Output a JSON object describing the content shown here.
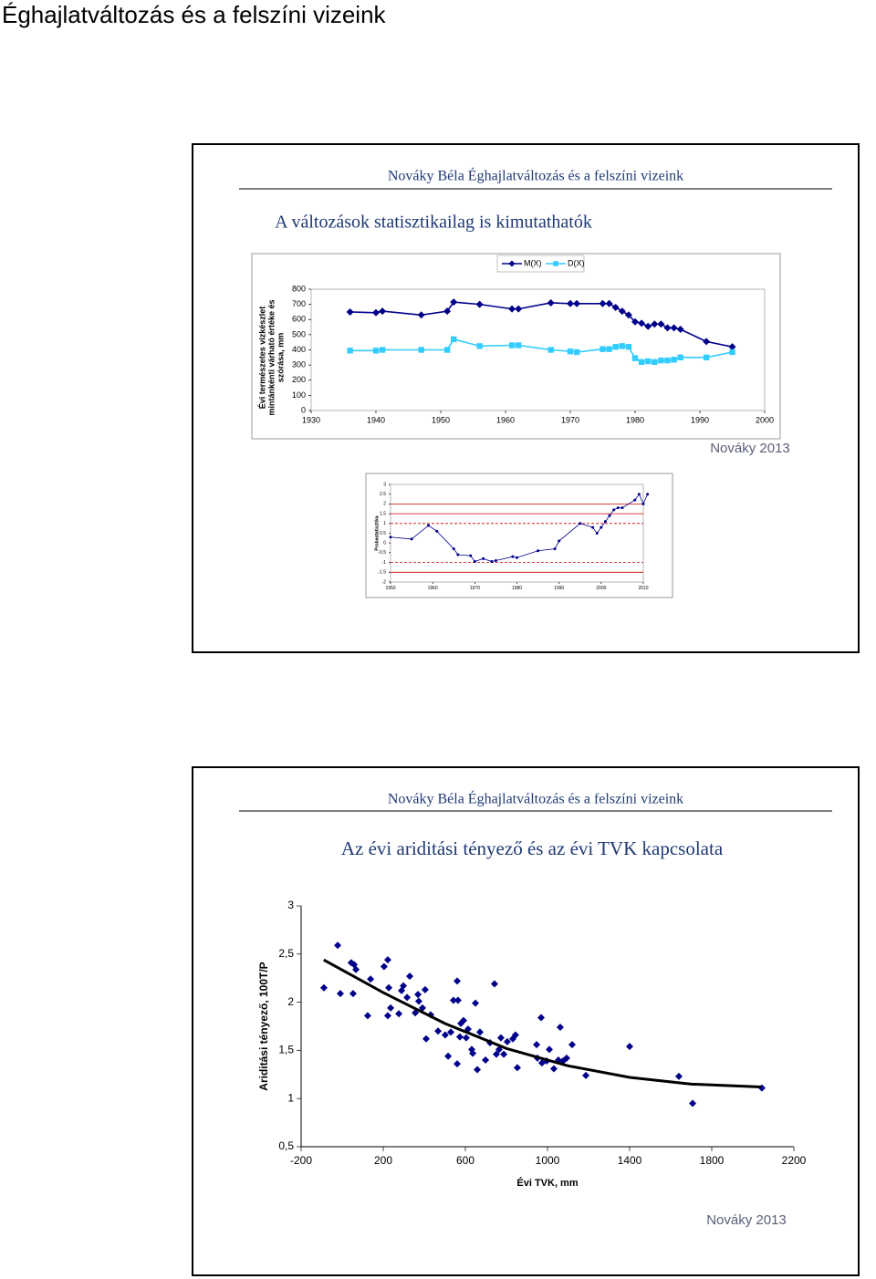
{
  "page_title": "Éghajlatváltozás és a felszíni vizeink",
  "slides": [
    {
      "header": "Nováky Béla Éghajlatváltozás és a felszíni vizeink",
      "title": "A változások statisztikailag is kimutathatók",
      "source": "Nováky 2013"
    },
    {
      "header": "Nováky Béla Éghajlatváltozás és a felszíni vizeink",
      "title": "Az évi ariditási tényező és az évi TVK kapcsolata",
      "source": "Nováky 2013"
    }
  ],
  "chart_data": [
    {
      "type": "line",
      "ylabel_lines": [
        "Évi természetes vízkészlet",
        "mintánkénti várható értéke és",
        "szórása, mm"
      ],
      "x": [
        1936,
        1940,
        1941,
        1947,
        1951,
        1952,
        1956,
        1961,
        1962,
        1967,
        1970,
        1971,
        1975,
        1976,
        1977,
        1978,
        1979,
        1980,
        1981,
        1982,
        1983,
        1984,
        1985,
        1986,
        1987,
        1991,
        1995
      ],
      "series": [
        {
          "name": "M(X)",
          "color": "#00008b",
          "marker": "diamond",
          "values": [
            650,
            645,
            655,
            630,
            655,
            715,
            700,
            670,
            670,
            710,
            705,
            705,
            705,
            705,
            680,
            655,
            630,
            585,
            575,
            555,
            570,
            570,
            545,
            545,
            535,
            455,
            420
          ]
        },
        {
          "name": "D(X)",
          "color": "#33ccff",
          "marker": "square",
          "values": [
            395,
            395,
            400,
            400,
            400,
            470,
            425,
            430,
            430,
            400,
            390,
            385,
            405,
            405,
            420,
            425,
            420,
            345,
            320,
            325,
            320,
            330,
            330,
            335,
            350,
            350,
            385
          ]
        }
      ],
      "xlim": [
        1930,
        2000
      ],
      "xticks": [
        1930,
        1940,
        1950,
        1960,
        1970,
        1980,
        1990,
        2000
      ],
      "ylim": [
        0,
        800
      ],
      "yticks": [
        0,
        100,
        200,
        300,
        400,
        500,
        600,
        700,
        800
      ],
      "legend": "top"
    },
    {
      "type": "line",
      "ylabel": "Probastatisztika",
      "x": [
        1950,
        1955,
        1959,
        1961,
        1965,
        1966,
        1969,
        1970,
        1972,
        1974,
        1975,
        1979,
        1980,
        1985,
        1989,
        1990,
        1995,
        1998,
        1999,
        2000,
        2001,
        2002,
        2003,
        2004,
        2005,
        2008,
        2009,
        2010,
        2011
      ],
      "series": [
        {
          "color": "#00008b",
          "marker": "dot",
          "values": [
            0.3,
            0.2,
            0.9,
            0.6,
            -0.3,
            -0.6,
            -0.65,
            -0.95,
            -0.8,
            -0.95,
            -0.9,
            -0.7,
            -0.75,
            -0.4,
            -0.3,
            0.1,
            1.0,
            0.8,
            0.5,
            0.8,
            1.1,
            1.4,
            1.7,
            1.8,
            1.8,
            2.2,
            2.5,
            2.0,
            2.5
          ]
        }
      ],
      "ref_lines": [
        {
          "value": 2,
          "style": "solid"
        },
        {
          "value": 1.5,
          "style": "solid"
        },
        {
          "value": 1,
          "style": "dashed"
        },
        {
          "value": -1,
          "style": "dashed"
        },
        {
          "value": -1.5,
          "style": "solid"
        }
      ],
      "ref_color": "#cc0000",
      "xlim": [
        1950,
        2010
      ],
      "xticks": [
        1950,
        1960,
        1970,
        1980,
        1990,
        2000,
        2010
      ],
      "ylim": [
        -2,
        3
      ],
      "yticks": [
        -2,
        -1.5,
        -1,
        -0.5,
        0,
        0.5,
        1,
        1.5,
        2,
        2.5,
        3
      ]
    },
    {
      "type": "scatter",
      "xlabel": "Évi TVK, mm",
      "ylabel": "Ariditási tényező, 100T/P",
      "color": "#00008b",
      "x": [
        -89,
        -22,
        -9,
        44,
        53,
        58,
        67,
        124,
        138,
        204,
        222,
        222,
        227,
        236,
        276,
        289,
        298,
        316,
        329,
        356,
        369,
        373,
        391,
        404,
        409,
        431,
        467,
        502,
        516,
        529,
        542,
        560,
        560,
        564,
        573,
        578,
        591,
        604,
        613,
        631,
        636,
        649,
        658,
        671,
        698,
        720,
        742,
        751,
        764,
        773,
        787,
        804,
        831,
        844,
        853,
        947,
        951,
        969,
        973,
        996,
        1009,
        1031,
        1053,
        1062,
        1076,
        1093,
        1120,
        1187,
        1400,
        1640,
        1707,
        2044
      ],
      "values": [
        2.15,
        2.59,
        2.09,
        2.41,
        2.09,
        2.39,
        2.34,
        1.86,
        2.24,
        2.37,
        2.44,
        1.86,
        2.15,
        1.94,
        1.88,
        2.12,
        2.17,
        2.05,
        2.27,
        1.89,
        2.08,
        2.01,
        1.94,
        2.13,
        1.62,
        1.87,
        1.7,
        1.66,
        1.44,
        1.69,
        2.02,
        2.22,
        1.36,
        2.02,
        1.64,
        1.78,
        1.81,
        1.63,
        1.72,
        1.51,
        1.47,
        1.99,
        1.3,
        1.69,
        1.4,
        1.58,
        2.19,
        1.46,
        1.51,
        1.63,
        1.46,
        1.59,
        1.62,
        1.66,
        1.32,
        1.56,
        1.42,
        1.84,
        1.37,
        1.39,
        1.51,
        1.31,
        1.4,
        1.74,
        1.39,
        1.42,
        1.56,
        1.24,
        1.54,
        1.23,
        0.95,
        1.11
      ],
      "trend": {
        "x": [
          -90,
          200,
          500,
          800,
          1100,
          1400,
          1700,
          2040
        ],
        "values": [
          2.44,
          2.1,
          1.78,
          1.52,
          1.34,
          1.22,
          1.15,
          1.12
        ],
        "color": "#000000"
      },
      "xlim": [
        -200,
        2200
      ],
      "xticks": [
        -200,
        200,
        600,
        1000,
        1400,
        1800,
        2200
      ],
      "ylim": [
        0.5,
        3
      ],
      "yticks": [
        {
          "value": 0.5,
          "label": "0,5"
        },
        1,
        {
          "value": 1.5,
          "label": "1,5"
        },
        2,
        {
          "value": 2.5,
          "label": "2,5"
        },
        3
      ]
    }
  ]
}
